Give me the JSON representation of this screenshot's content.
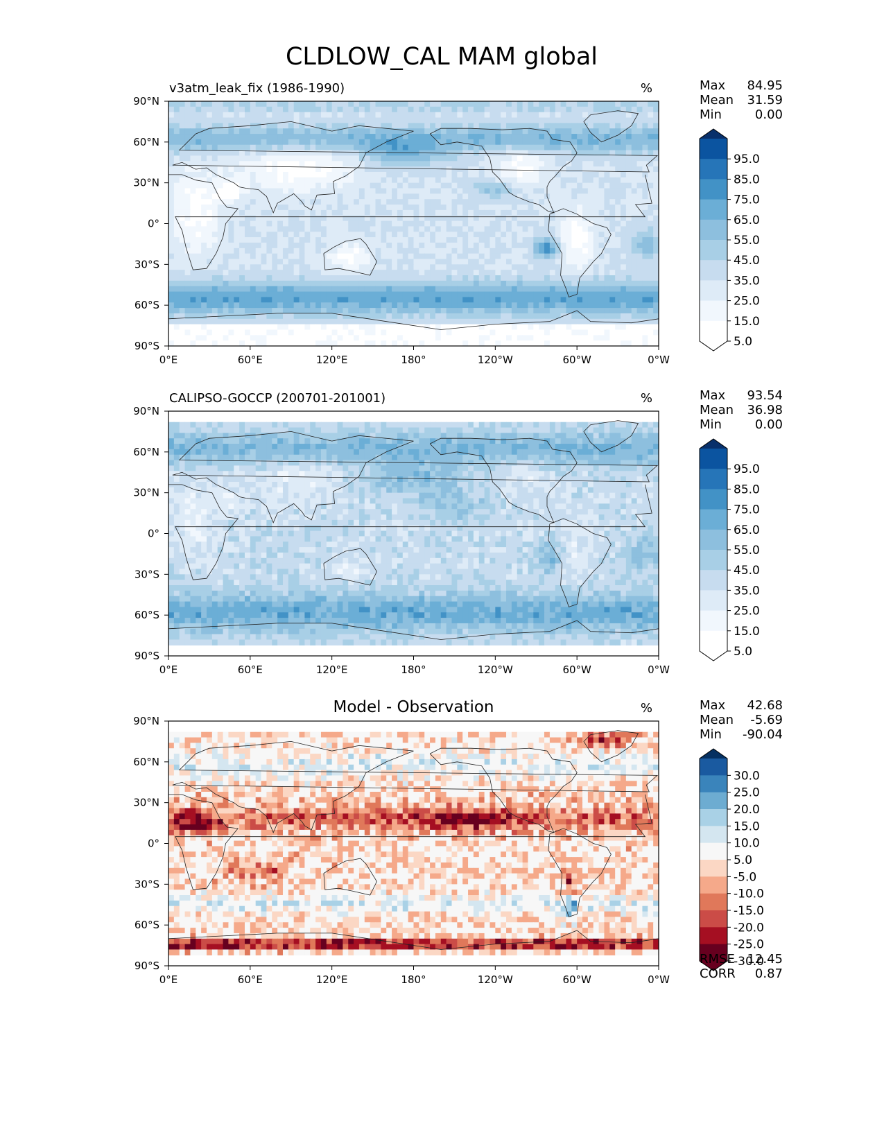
{
  "title": "CLDLOW_CAL MAM global",
  "colors": {
    "blues": [
      "#ffffff",
      "#f1f7fd",
      "#deebf7",
      "#c7dcef",
      "#a8cfe6",
      "#8dbfde",
      "#6baed6",
      "#4292c6",
      "#2675b8",
      "#0b54a0",
      "#08306b"
    ],
    "diverging": [
      "#67001f",
      "#a50f22",
      "#cb4c47",
      "#e0785a",
      "#f5a98a",
      "#fbd7c4",
      "#f7f7f7",
      "#d4e6f0",
      "#a9d1e6",
      "#6dacd1",
      "#3a84bb",
      "#1a5aa0",
      "#053061"
    ]
  },
  "chart_data": [
    {
      "type": "heatmap",
      "panel": "test",
      "title": "v3atm_leak_fix (1986-1990)",
      "units": "%",
      "stats": [
        {
          "label": "Max",
          "value": "84.95"
        },
        {
          "label": "Mean",
          "value": "31.59"
        },
        {
          "label": "Min",
          "value": "0.00"
        }
      ],
      "xticks": [
        "0°E",
        "60°E",
        "120°E",
        "180°",
        "120°W",
        "60°W",
        "0°W"
      ],
      "yticks": [
        "90°N",
        "60°N",
        "30°N",
        "0°",
        "30°S",
        "60°S",
        "90°S"
      ],
      "xlim": [
        0,
        360
      ],
      "ylim": [
        -90,
        90
      ],
      "colorbar_ticks": [
        "95.0",
        "85.0",
        "75.0",
        "65.0",
        "55.0",
        "45.0",
        "35.0",
        "25.0",
        "15.0",
        "5.0"
      ],
      "levels": [
        0,
        5,
        15,
        25,
        35,
        45,
        55,
        65,
        75,
        85,
        95,
        100
      ]
    },
    {
      "type": "heatmap",
      "panel": "reference",
      "title": "CALIPSO-GOCCP (200701-201001)",
      "units": "%",
      "stats": [
        {
          "label": "Max",
          "value": "93.54"
        },
        {
          "label": "Mean",
          "value": "36.98"
        },
        {
          "label": "Min",
          "value": "0.00"
        }
      ],
      "xticks": [
        "0°E",
        "60°E",
        "120°E",
        "180°",
        "120°W",
        "60°W",
        "0°W"
      ],
      "yticks": [
        "90°N",
        "60°N",
        "30°N",
        "0°",
        "30°S",
        "60°S",
        "90°S"
      ],
      "xlim": [
        0,
        360
      ],
      "ylim": [
        -90,
        90
      ],
      "colorbar_ticks": [
        "95.0",
        "85.0",
        "75.0",
        "65.0",
        "55.0",
        "45.0",
        "35.0",
        "25.0",
        "15.0",
        "5.0"
      ],
      "levels": [
        0,
        5,
        15,
        25,
        35,
        45,
        55,
        65,
        75,
        85,
        95,
        100
      ]
    },
    {
      "type": "heatmap",
      "panel": "difference",
      "title": "Model - Observation",
      "units": "%",
      "stats": [
        {
          "label": "Max",
          "value": "42.68"
        },
        {
          "label": "Mean",
          "value": "-5.69"
        },
        {
          "label": "Min",
          "value": "-90.04"
        }
      ],
      "metrics": [
        {
          "label": "RMSE",
          "value": "12.45"
        },
        {
          "label": "CORR",
          "value": "0.87"
        }
      ],
      "xticks": [
        "0°E",
        "60°E",
        "120°E",
        "180°",
        "120°W",
        "60°W",
        "0°W"
      ],
      "yticks": [
        "90°N",
        "60°N",
        "30°N",
        "0°",
        "30°S",
        "60°S",
        "90°S"
      ],
      "xlim": [
        0,
        360
      ],
      "ylim": [
        -90,
        90
      ],
      "colorbar_ticks": [
        "30.0",
        "25.0",
        "20.0",
        "15.0",
        "10.0",
        "5.0",
        "-5.0",
        "-10.0",
        "-15.0",
        "-20.0",
        "-25.0",
        "-30.0"
      ],
      "levels": [
        -40,
        -30,
        -25,
        -20,
        -15,
        -10,
        -5,
        5,
        10,
        15,
        20,
        25,
        30,
        40
      ]
    }
  ]
}
